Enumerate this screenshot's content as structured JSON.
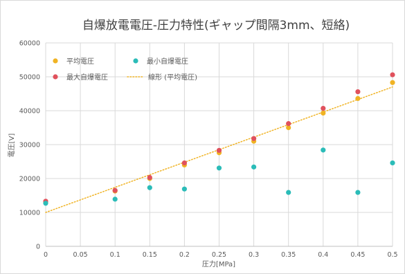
{
  "chart_data": {
    "type": "scatter",
    "title": "自爆放電電圧-圧力特性(ギャップ間隔3mm、短絡)",
    "xlabel": "圧力[MPa]",
    "ylabel": "電圧[V]",
    "xlim": [
      0,
      0.5
    ],
    "ylim": [
      0,
      60000
    ],
    "x_ticks": [
      "0",
      "0.05",
      "0.1",
      "0.15",
      "0.2",
      "0.25",
      "0.3",
      "0.35",
      "0.4",
      "0.45",
      "0.5"
    ],
    "y_ticks": [
      "0",
      "10000",
      "20000",
      "30000",
      "40000",
      "50000",
      "60000"
    ],
    "grid": true,
    "legend_position": "top-left",
    "series": [
      {
        "name": "平均電圧",
        "color": "#f0b323",
        "points": [
          [
            0,
            13000
          ],
          [
            0.1,
            16300
          ],
          [
            0.15,
            20000
          ],
          [
            0.2,
            24000
          ],
          [
            0.25,
            27600
          ],
          [
            0.3,
            31000
          ],
          [
            0.35,
            35000
          ],
          [
            0.4,
            39300
          ],
          [
            0.45,
            43600
          ],
          [
            0.5,
            48300
          ]
        ]
      },
      {
        "name": "最大自爆電圧",
        "color": "#e0515c",
        "points": [
          [
            0,
            13300
          ],
          [
            0.1,
            16500
          ],
          [
            0.15,
            20300
          ],
          [
            0.2,
            24600
          ],
          [
            0.25,
            28300
          ],
          [
            0.3,
            31800
          ],
          [
            0.35,
            36200
          ],
          [
            0.4,
            40700
          ],
          [
            0.45,
            45600
          ],
          [
            0.5,
            50600
          ]
        ]
      },
      {
        "name": "最小自爆電圧",
        "color": "#2bbcb8",
        "points": [
          [
            0,
            12700
          ],
          [
            0.1,
            13900
          ],
          [
            0.15,
            17300
          ],
          [
            0.2,
            16900
          ],
          [
            0.25,
            23100
          ],
          [
            0.3,
            23400
          ],
          [
            0.35,
            15900
          ],
          [
            0.4,
            28400
          ],
          [
            0.45,
            15900
          ],
          [
            0.5,
            24600
          ]
        ]
      }
    ],
    "trendline": {
      "name": "線形 (平均電圧)",
      "color": "#f0b323",
      "style": "dotted",
      "from": [
        0,
        10000
      ],
      "to": [
        0.5,
        47000
      ]
    }
  }
}
